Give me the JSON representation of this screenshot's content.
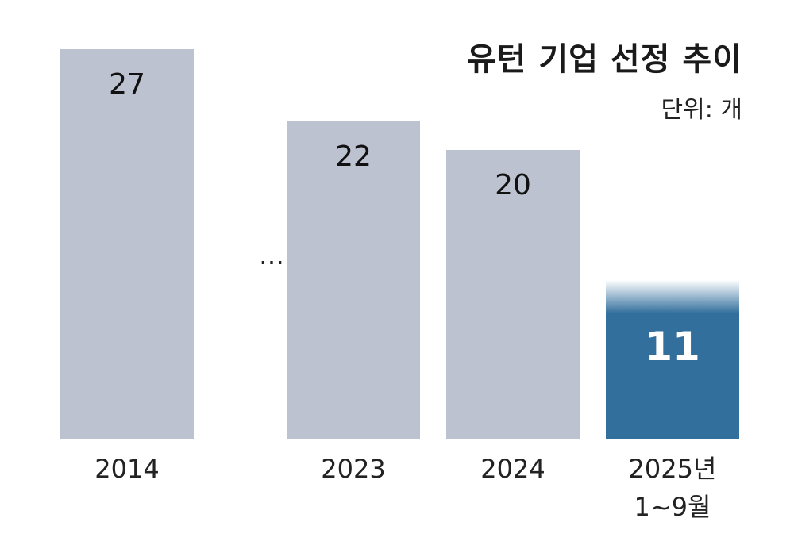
{
  "chart_data": {
    "type": "bar",
    "title": "유턴 기업 선정 추이",
    "subtitle": "단위: 개",
    "categories": [
      "2014",
      "…",
      "2023",
      "2024",
      "2025년\n1~9월"
    ],
    "values": [
      27,
      null,
      22,
      20,
      11
    ],
    "colors": [
      "#bcc2cf",
      null,
      "#bcc2cf",
      "#bcc2cf",
      "#336f9d"
    ],
    "ylim": [
      0,
      27
    ]
  }
}
